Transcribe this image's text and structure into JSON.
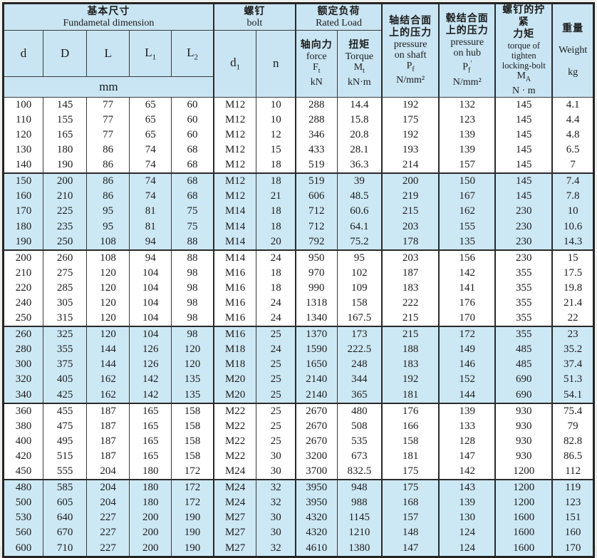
{
  "table": {
    "header": {
      "basic": {
        "zh": "基本尺寸",
        "en": "Fundametal dimension"
      },
      "bolt": {
        "zh": "螺钉",
        "en": "bolt"
      },
      "rated": {
        "zh": "额定负荷",
        "en": "Rated Load"
      },
      "col_d": "d",
      "col_D": "D",
      "col_L": "L",
      "col_L1": {
        "base": "L",
        "sub": "1"
      },
      "col_L2": {
        "base": "L",
        "sub": "2"
      },
      "unit_mm": "mm",
      "col_d1": {
        "base": "d",
        "sub": "1"
      },
      "col_n": "n",
      "force": {
        "zh": "轴向力",
        "en": "force",
        "sym_base": "F",
        "sym_sub": "t",
        "unit": "kN"
      },
      "torque": {
        "zh": "扭矩",
        "en": "Torque",
        "sym_base": "M",
        "sym_sub": "t",
        "unit": "kN·m"
      },
      "pressure_shaft": {
        "zh1": "轴结合面",
        "zh2": "上的压力",
        "en1": "pressure",
        "en2": "on shaft",
        "sym_base": "P",
        "sym_sub": "f",
        "unit": "N/mm²"
      },
      "pressure_hub": {
        "zh1": "毂结合面",
        "zh2": "上的压力",
        "en1": "pressure",
        "en2": "on hub",
        "sym_base": "P",
        "sym_sub": "f",
        "prime": "'",
        "unit": "N/mm²"
      },
      "tighten_torque": {
        "zh1": "螺钉的拧紧",
        "zh2": "力矩",
        "en1": "torque of",
        "en2": "tighten",
        "en3": "locking-bolt",
        "sym_base": "M",
        "sym_sub": "A",
        "unit": "N · m"
      },
      "weight": {
        "zh": "重量",
        "en": "Weight",
        "unit": "kg"
      }
    },
    "rows": [
      [
        "100",
        "145",
        "77",
        "65",
        "60",
        "M12",
        "10",
        "288",
        "14.4",
        "192",
        "132",
        "145",
        "4.1"
      ],
      [
        "110",
        "155",
        "77",
        "65",
        "60",
        "M12",
        "10",
        "288",
        "15.8",
        "175",
        "123",
        "145",
        "4.4"
      ],
      [
        "120",
        "165",
        "77",
        "65",
        "60",
        "M12",
        "12",
        "346",
        "20.8",
        "192",
        "139",
        "145",
        "4.8"
      ],
      [
        "130",
        "180",
        "86",
        "74",
        "68",
        "M12",
        "15",
        "433",
        "28.1",
        "193",
        "139",
        "145",
        "6.5"
      ],
      [
        "140",
        "190",
        "86",
        "74",
        "68",
        "M12",
        "18",
        "519",
        "36.3",
        "214",
        "157",
        "145",
        "7"
      ],
      [
        "150",
        "200",
        "86",
        "74",
        "68",
        "M12",
        "18",
        "519",
        "39",
        "200",
        "150",
        "145",
        "7.4"
      ],
      [
        "160",
        "210",
        "86",
        "74",
        "68",
        "M12",
        "21",
        "606",
        "48.5",
        "219",
        "167",
        "145",
        "7.8"
      ],
      [
        "170",
        "225",
        "95",
        "81",
        "75",
        "M14",
        "18",
        "712",
        "60.6",
        "215",
        "162",
        "230",
        "10"
      ],
      [
        "180",
        "235",
        "95",
        "81",
        "75",
        "M14",
        "18",
        "712",
        "64.1",
        "203",
        "155",
        "230",
        "10.6"
      ],
      [
        "190",
        "250",
        "108",
        "94",
        "88",
        "M14",
        "20",
        "792",
        "75.2",
        "178",
        "135",
        "230",
        "14.3"
      ],
      [
        "200",
        "260",
        "108",
        "94",
        "88",
        "M14",
        "24",
        "950",
        "95",
        "203",
        "156",
        "230",
        "15"
      ],
      [
        "210",
        "275",
        "120",
        "104",
        "98",
        "M16",
        "18",
        "970",
        "102",
        "187",
        "142",
        "355",
        "17.5"
      ],
      [
        "220",
        "285",
        "120",
        "104",
        "98",
        "M16",
        "18",
        "990",
        "109",
        "183",
        "141",
        "355",
        "19.8"
      ],
      [
        "240",
        "305",
        "120",
        "104",
        "98",
        "M16",
        "24",
        "1318",
        "158",
        "222",
        "176",
        "355",
        "21.4"
      ],
      [
        "250",
        "315",
        "120",
        "104",
        "98",
        "M16",
        "24",
        "1340",
        "167.5",
        "215",
        "170",
        "355",
        "22"
      ],
      [
        "260",
        "325",
        "120",
        "104",
        "98",
        "M16",
        "25",
        "1370",
        "173",
        "215",
        "172",
        "355",
        "23"
      ],
      [
        "280",
        "355",
        "144",
        "126",
        "120",
        "M18",
        "24",
        "1590",
        "222.5",
        "188",
        "149",
        "485",
        "35.2"
      ],
      [
        "300",
        "375",
        "144",
        "126",
        "120",
        "M18",
        "25",
        "1650",
        "248",
        "183",
        "146",
        "485",
        "37.4"
      ],
      [
        "320",
        "405",
        "162",
        "142",
        "135",
        "M20",
        "25",
        "2140",
        "344",
        "192",
        "152",
        "690",
        "51.3"
      ],
      [
        "340",
        "425",
        "162",
        "142",
        "135",
        "M20",
        "25",
        "2140",
        "365",
        "181",
        "144",
        "690",
        "54.1"
      ],
      [
        "360",
        "455",
        "187",
        "165",
        "158",
        "M22",
        "25",
        "2670",
        "480",
        "176",
        "139",
        "930",
        "75.4"
      ],
      [
        "380",
        "475",
        "187",
        "165",
        "158",
        "M22",
        "25",
        "2670",
        "508",
        "166",
        "133",
        "930",
        "79"
      ],
      [
        "400",
        "495",
        "187",
        "165",
        "158",
        "M22",
        "25",
        "2670",
        "535",
        "158",
        "128",
        "930",
        "82.8"
      ],
      [
        "420",
        "515",
        "187",
        "165",
        "158",
        "M22",
        "30",
        "3200",
        "673",
        "181",
        "147",
        "930",
        "86.5"
      ],
      [
        "450",
        "555",
        "204",
        "180",
        "172",
        "M24",
        "30",
        "3700",
        "832.5",
        "175",
        "142",
        "1200",
        "112"
      ],
      [
        "480",
        "585",
        "204",
        "180",
        "172",
        "M24",
        "32",
        "3950",
        "948",
        "175",
        "143",
        "1200",
        "119"
      ],
      [
        "500",
        "605",
        "204",
        "180",
        "172",
        "M24",
        "32",
        "3950",
        "988",
        "168",
        "139",
        "1200",
        "123"
      ],
      [
        "530",
        "640",
        "227",
        "200",
        "190",
        "M27",
        "30",
        "4320",
        "1145",
        "157",
        "130",
        "1600",
        "151"
      ],
      [
        "560",
        "670",
        "227",
        "200",
        "190",
        "M27",
        "30",
        "4320",
        "1210",
        "148",
        "124",
        "1600",
        "160"
      ],
      [
        "600",
        "710",
        "227",
        "200",
        "190",
        "M27",
        "32",
        "4610",
        "1380",
        "147",
        "124",
        "1600",
        "170"
      ]
    ],
    "colors": {
      "header_bg": "#c9e5f3",
      "band_bg": "#cde8f5",
      "border": "#2a2a2a"
    }
  }
}
